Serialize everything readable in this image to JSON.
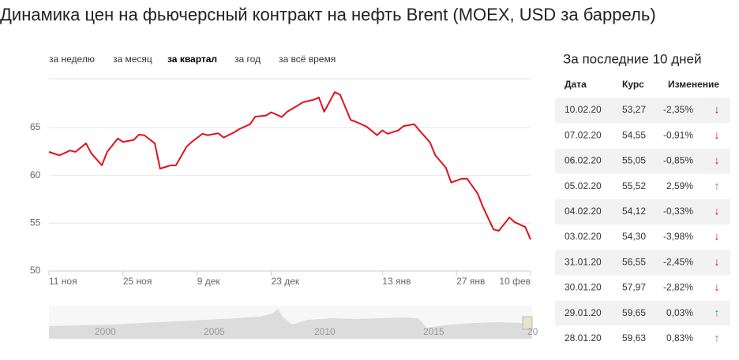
{
  "title": "Динамика цен на фьючерсный контракт на нефть Brent (MOEX, USD за баррель)",
  "tabs": [
    "за неделю",
    "за месяц",
    "за квартал",
    "за год",
    "за всё время"
  ],
  "active_tab": 2,
  "chart_data": {
    "type": "line",
    "color": "#e3101a",
    "x": [
      0,
      2,
      4,
      5,
      7,
      8,
      10,
      11,
      13,
      14,
      16,
      17,
      18,
      20,
      21,
      23,
      24,
      26,
      27,
      29,
      30,
      32,
      33,
      35,
      36,
      38,
      39,
      41,
      42,
      44,
      45,
      47,
      48,
      50,
      51,
      52,
      54,
      55,
      57,
      58,
      60,
      62,
      63,
      64,
      66,
      67,
      69,
      70,
      72,
      73,
      75,
      76,
      78,
      79,
      81,
      82,
      84,
      85,
      87,
      88,
      90,
      91
    ],
    "values": [
      62.45,
      62.1,
      62.6,
      62.45,
      63.35,
      62.3,
      61.05,
      62.45,
      63.85,
      63.5,
      63.7,
      64.25,
      64.2,
      63.35,
      60.7,
      61.05,
      61.05,
      63.0,
      63.5,
      64.35,
      64.2,
      64.4,
      63.95,
      64.5,
      64.85,
      65.35,
      66.15,
      66.25,
      66.6,
      66.1,
      66.65,
      67.3,
      67.65,
      67.9,
      68.15,
      66.65,
      68.7,
      68.45,
      65.8,
      65.6,
      65.1,
      64.2,
      64.7,
      64.35,
      64.7,
      65.15,
      65.35,
      64.7,
      63.45,
      62.1,
      60.8,
      59.25,
      59.65,
      59.65,
      58.1,
      56.7,
      54.35,
      54.2,
      55.6,
      55.1,
      54.6,
      53.3
    ],
    "xlim": [
      0,
      91
    ],
    "xticks": [
      {
        "value": 0,
        "label": "11 ноя"
      },
      {
        "value": 14,
        "label": "25 ноя"
      },
      {
        "value": 28,
        "label": "9 дек"
      },
      {
        "value": 42,
        "label": "23 дек"
      },
      {
        "value": 63,
        "label": "13 янв"
      },
      {
        "value": 77,
        "label": "27 янв"
      },
      {
        "value": 91,
        "label": "10 фев"
      }
    ],
    "ylim": [
      50,
      70.1
    ],
    "yticks": [
      50,
      55,
      60,
      65
    ],
    "grid": true,
    "navigator_labels": [
      "2000",
      "2005",
      "2010",
      "2015",
      "20"
    ]
  },
  "table": {
    "title": "За последние 10 дней",
    "header": [
      "Дата",
      "Курс",
      "Изменение"
    ],
    "rows": [
      [
        "10.02.20",
        "53,27",
        "-2,35%",
        "↓"
      ],
      [
        "07.02.20",
        "54,55",
        "-0,91%",
        "↓"
      ],
      [
        "06.02.20",
        "55,05",
        "-0,85%",
        "↓"
      ],
      [
        "05.02.20",
        "55,52",
        "2,59%",
        "↑"
      ],
      [
        "04.02.20",
        "54,12",
        "-0,33%",
        "↓"
      ],
      [
        "03.02.20",
        "54,30",
        "-3,98%",
        "↓"
      ],
      [
        "31.01.20",
        "56,55",
        "-2,45%",
        "↓"
      ],
      [
        "30.01.20",
        "57,97",
        "-2,82%",
        "↓"
      ],
      [
        "29.01.20",
        "59,65",
        "0,03%",
        "↑"
      ],
      [
        "28.01.20",
        "59,63",
        "0,83%",
        "↑"
      ]
    ]
  }
}
